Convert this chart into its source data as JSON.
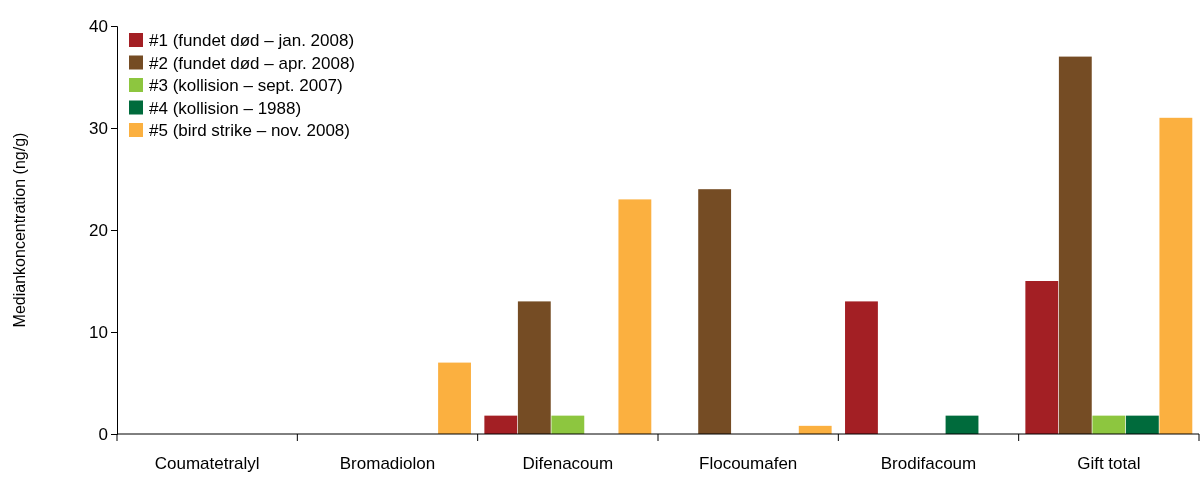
{
  "chart_data": {
    "type": "bar",
    "ylabel": "Mediankoncentration (ng/g)",
    "categories": [
      "Coumatetralyl",
      "Bromadiolon",
      "Difenacoum",
      "Flocoumafen",
      "Brodifacoum",
      "Gift total"
    ],
    "series": [
      {
        "name": "#1 (fundet død – jan. 2008)",
        "color": "#a31f24",
        "values": [
          null,
          null,
          1.8,
          null,
          13,
          15
        ]
      },
      {
        "name": "#2 (fundet død – apr. 2008)",
        "color": "#754c24",
        "values": [
          null,
          null,
          13,
          24,
          null,
          37
        ]
      },
      {
        "name": "#3 (kollision – sept. 2007)",
        "color": "#8dc63f",
        "values": [
          null,
          null,
          1.8,
          null,
          null,
          1.8
        ]
      },
      {
        "name": "#4 (kollision – 1988)",
        "color": "#006b3c",
        "values": [
          null,
          null,
          null,
          null,
          1.8,
          1.8
        ]
      },
      {
        "name": "#5 (bird strike – nov. 2008)",
        "color": "#fbb040",
        "values": [
          null,
          7,
          23,
          0.8,
          null,
          31
        ]
      }
    ],
    "ylim": [
      0,
      40
    ],
    "yticks": [
      0,
      10,
      20,
      30,
      40
    ],
    "grid": false,
    "legend": "top left"
  }
}
